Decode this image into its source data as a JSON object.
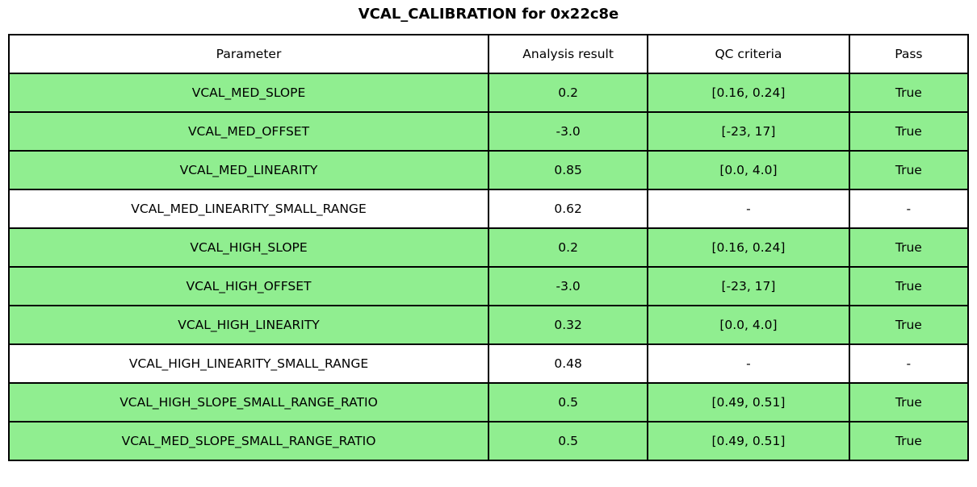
{
  "title": "VCAL_CALIBRATION for 0x22c8e",
  "colors": {
    "pass_row_green": "#90EE90",
    "neutral_row_white": "#ffffff",
    "border": "#000000",
    "text": "#000000"
  },
  "chart_data": {
    "type": "table",
    "title": "VCAL_CALIBRATION for 0x22c8e",
    "columns": [
      "Parameter",
      "Analysis result",
      "QC criteria",
      "Pass"
    ],
    "rows": [
      {
        "parameter": "VCAL_MED_SLOPE",
        "analysis_result": "0.2",
        "qc_criteria": "[0.16, 0.24]",
        "pass": "True",
        "highlight": true
      },
      {
        "parameter": "VCAL_MED_OFFSET",
        "analysis_result": "-3.0",
        "qc_criteria": "[-23, 17]",
        "pass": "True",
        "highlight": true
      },
      {
        "parameter": "VCAL_MED_LINEARITY",
        "analysis_result": "0.85",
        "qc_criteria": "[0.0, 4.0]",
        "pass": "True",
        "highlight": true
      },
      {
        "parameter": "VCAL_MED_LINEARITY_SMALL_RANGE",
        "analysis_result": "0.62",
        "qc_criteria": "-",
        "pass": "-",
        "highlight": false
      },
      {
        "parameter": "VCAL_HIGH_SLOPE",
        "analysis_result": "0.2",
        "qc_criteria": "[0.16, 0.24]",
        "pass": "True",
        "highlight": true
      },
      {
        "parameter": "VCAL_HIGH_OFFSET",
        "analysis_result": "-3.0",
        "qc_criteria": "[-23, 17]",
        "pass": "True",
        "highlight": true
      },
      {
        "parameter": "VCAL_HIGH_LINEARITY",
        "analysis_result": "0.32",
        "qc_criteria": "[0.0, 4.0]",
        "pass": "True",
        "highlight": true
      },
      {
        "parameter": "VCAL_HIGH_LINEARITY_SMALL_RANGE",
        "analysis_result": "0.48",
        "qc_criteria": "-",
        "pass": "-",
        "highlight": false
      },
      {
        "parameter": "VCAL_HIGH_SLOPE_SMALL_RANGE_RATIO",
        "analysis_result": "0.5",
        "qc_criteria": "[0.49, 0.51]",
        "pass": "True",
        "highlight": true
      },
      {
        "parameter": "VCAL_MED_SLOPE_SMALL_RANGE_RATIO",
        "analysis_result": "0.5",
        "qc_criteria": "[0.49, 0.51]",
        "pass": "True",
        "highlight": true
      }
    ],
    "column_width_percent": [
      50,
      16.6,
      21,
      12.4
    ]
  }
}
